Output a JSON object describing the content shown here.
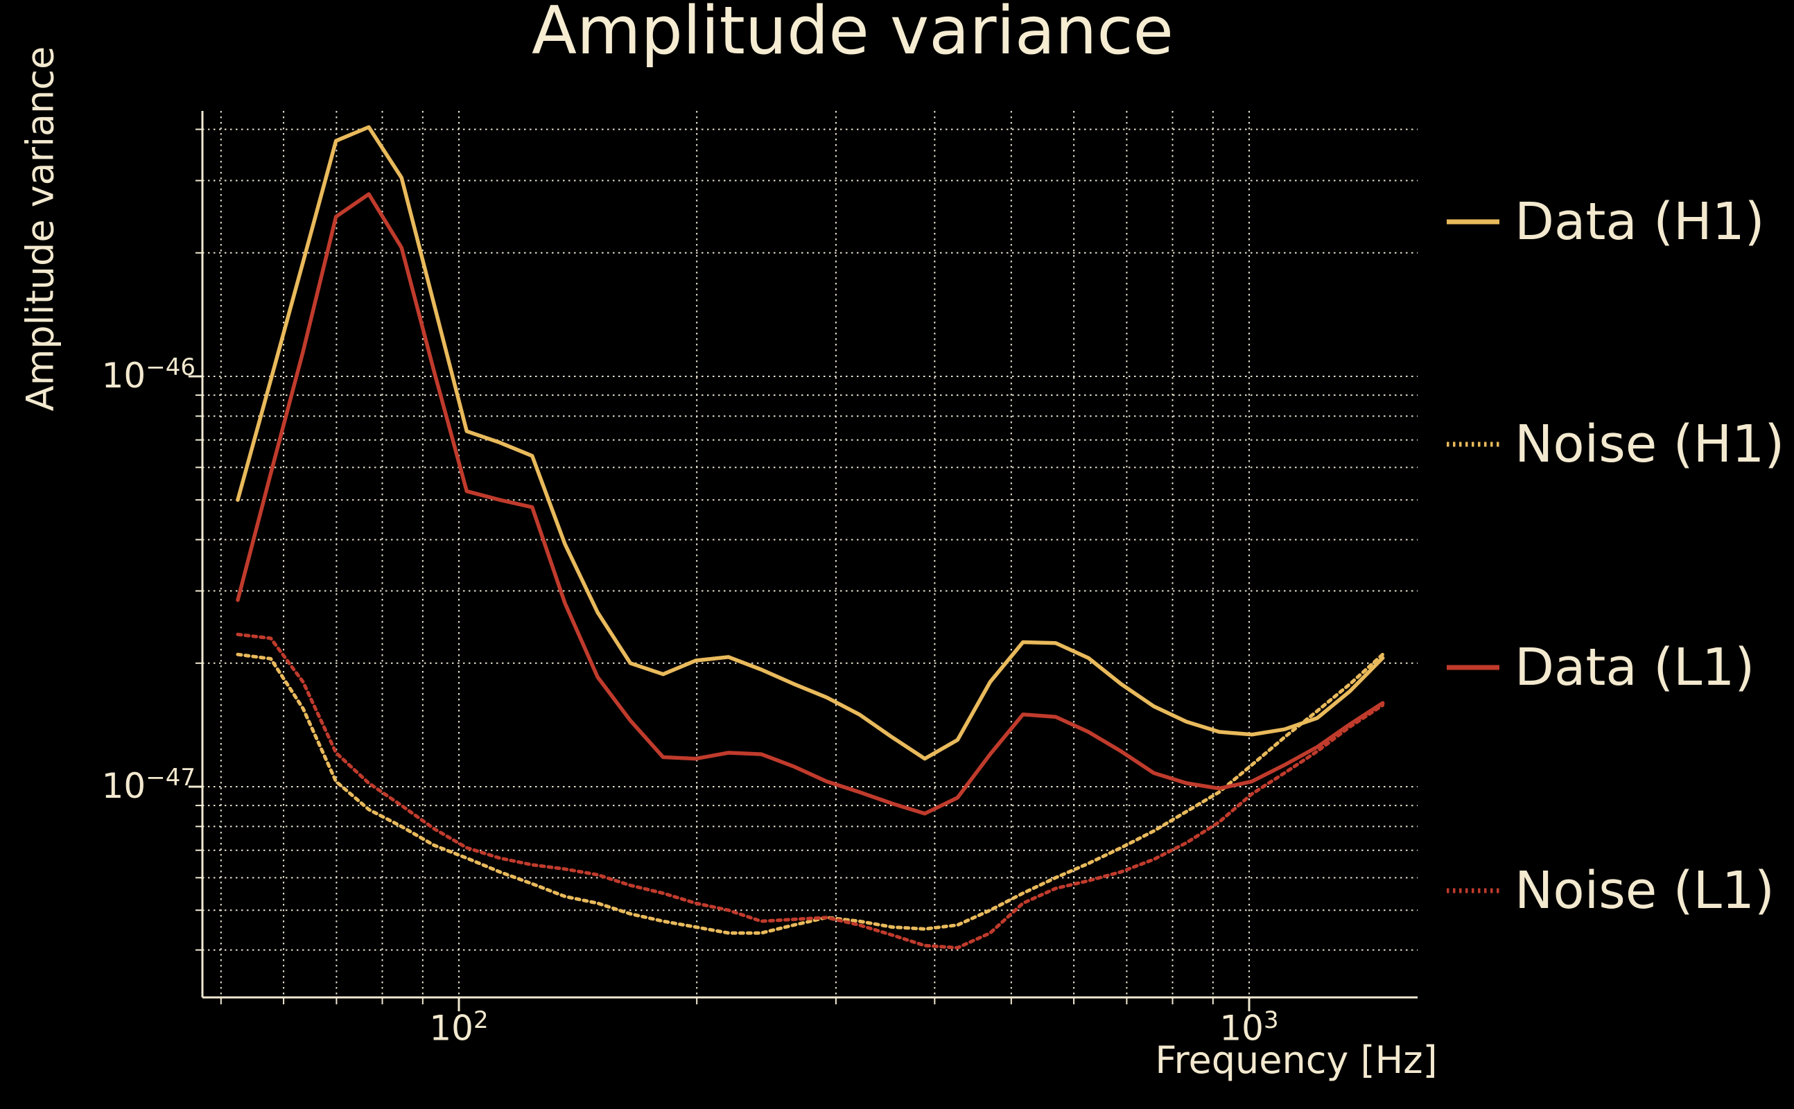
{
  "title": "Amplitude variance",
  "axes": {
    "xlabel": "Frequency [Hz]",
    "ylabel": "Amplitude variance",
    "xticks": [
      {
        "base": "10",
        "exp": "2",
        "value": 100
      },
      {
        "base": "10",
        "exp": "3",
        "value": 1000
      }
    ],
    "yticks": [
      {
        "base": "10",
        "exp": "−46",
        "value": 1e-46
      },
      {
        "base": "10",
        "exp": "−47",
        "value": 1e-47
      }
    ]
  },
  "legend": {
    "position": "right-outside",
    "items": [
      {
        "label": "Data (H1)"
      },
      {
        "label": "Noise (H1)"
      },
      {
        "label": "Data (L1)"
      },
      {
        "label": "Noise (L1)"
      }
    ]
  },
  "colors": {
    "background": "#000000",
    "text": "#f3e9cf",
    "grid": "#f6f0dd",
    "spine": "#f0e9d2",
    "h1_gold": "#e9ba5c",
    "l1_red": "#c03b2c"
  },
  "chart_data": {
    "type": "line",
    "title": "Amplitude variance",
    "xlabel": "Frequency [Hz]",
    "ylabel": "Amplitude variance",
    "xscale": "log",
    "yscale": "log",
    "xlim": [
      47.3,
      1634
    ],
    "ylim": [
      3.06e-48,
      4.43e-46
    ],
    "grid": true,
    "legend_position": "right",
    "x": [
      52.5,
      57.8,
      63.5,
      69.9,
      76.9,
      84.6,
      93.0,
      102.3,
      112.6,
      123.8,
      136.2,
      149.8,
      164.8,
      181.3,
      199.4,
      219.4,
      241.3,
      265.4,
      292.0,
      321.2,
      353.3,
      388.6,
      427.5,
      470.2,
      517.3,
      569.0,
      625.9,
      688.5,
      757.3,
      833.1,
      916.4,
      1008.0,
      1108.8,
      1219.7,
      1341.6,
      1475.8
    ],
    "series": [
      {
        "name": "Data (H1)",
        "style": "solid",
        "color": "#e9ba5c",
        "values": [
          5e-47,
          9.8e-47,
          1.9e-46,
          3.75e-46,
          4.05e-46,
          3.05e-46,
          1.5e-46,
          7.35e-47,
          6.9e-47,
          6.4e-47,
          3.9e-47,
          2.66e-47,
          2e-47,
          1.88e-47,
          2.03e-47,
          2.07e-47,
          1.93e-47,
          1.78e-47,
          1.65e-47,
          1.5e-47,
          1.32e-47,
          1.17e-47,
          1.3e-47,
          1.8e-47,
          2.25e-47,
          2.24e-47,
          2.06e-47,
          1.78e-47,
          1.57e-47,
          1.44e-47,
          1.36e-47,
          1.34e-47,
          1.38e-47,
          1.47e-47,
          1.71e-47,
          2.06e-47
        ]
      },
      {
        "name": "Noise (H1)",
        "style": "dotted",
        "color": "#e9ba5c",
        "values": [
          2.1e-47,
          2.05e-47,
          1.55e-47,
          1.03e-47,
          8.8e-48,
          8e-48,
          7.2e-48,
          6.7e-48,
          6.2e-48,
          5.8e-48,
          5.4e-48,
          5.2e-48,
          4.9e-48,
          4.7e-48,
          4.55e-48,
          4.4e-48,
          4.4e-48,
          4.6e-48,
          4.8e-48,
          4.7e-48,
          4.55e-48,
          4.5e-48,
          4.6e-48,
          5e-48,
          5.5e-48,
          6e-48,
          6.5e-48,
          7.1e-48,
          7.8e-48,
          8.7e-48,
          9.7e-48,
          1.13e-47,
          1.32e-47,
          1.53e-47,
          1.78e-47,
          2.1e-47
        ]
      },
      {
        "name": "Data (L1)",
        "style": "solid",
        "color": "#c03b2c",
        "values": [
          2.85e-47,
          5.8e-47,
          1.15e-46,
          2.45e-46,
          2.78e-46,
          2.06e-46,
          1.03e-46,
          5.25e-47,
          5e-47,
          4.8e-47,
          2.8e-47,
          1.85e-47,
          1.45e-47,
          1.18e-47,
          1.17e-47,
          1.21e-47,
          1.2e-47,
          1.12e-47,
          1.03e-47,
          9.7e-48,
          9.1e-48,
          8.6e-48,
          9.4e-48,
          1.2e-47,
          1.5e-47,
          1.48e-47,
          1.36e-47,
          1.22e-47,
          1.08e-47,
          1.02e-47,
          9.9e-48,
          1.03e-47,
          1.13e-47,
          1.25e-47,
          1.42e-47,
          1.6e-47
        ]
      },
      {
        "name": "Noise (L1)",
        "style": "dotted",
        "color": "#c03b2c",
        "values": [
          2.35e-47,
          2.3e-47,
          1.8e-47,
          1.21e-47,
          1.02e-47,
          9e-48,
          7.9e-48,
          7.1e-48,
          6.7e-48,
          6.45e-48,
          6.3e-48,
          6.1e-48,
          5.75e-48,
          5.5e-48,
          5.2e-48,
          5e-48,
          4.7e-48,
          4.75e-48,
          4.8e-48,
          4.6e-48,
          4.35e-48,
          4.1e-48,
          4.05e-48,
          4.4e-48,
          5.2e-48,
          5.65e-48,
          5.9e-48,
          6.2e-48,
          6.65e-48,
          7.3e-48,
          8.2e-48,
          9.6e-48,
          1.08e-47,
          1.22e-47,
          1.4e-47,
          1.58e-47
        ]
      }
    ]
  }
}
